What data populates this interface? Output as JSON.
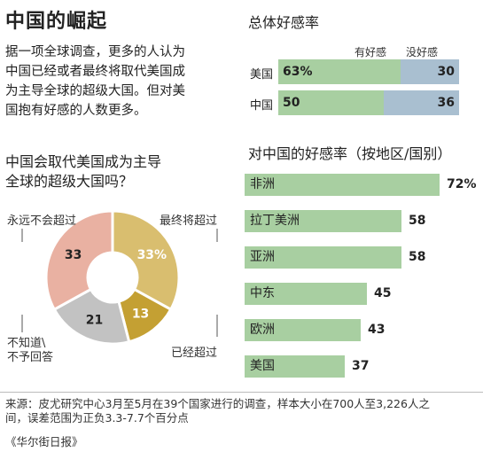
{
  "title": "中国的崛起",
  "intro_lines": [
    "据一项全球调查，更多的人认为",
    "中国已经或者最终将取代美国成",
    "为主导全球的超级大国。但对美",
    "国抱有好感的人数更多。"
  ],
  "question_lines": [
    "中国会取代美国成为主导",
    "全球的超级大国吗？"
  ],
  "overall": {
    "title": "总体好感率",
    "fav_label": "有好感",
    "unfav_label": "没好感"
  },
  "region": {
    "title": "对中国的好感率（按地区/国别）"
  },
  "donut_labels": {
    "never": "永远不会超过",
    "eventually": "最终将超过",
    "already": "已经超过",
    "dont_know_lines": [
      "不知道\\",
      "不予回答"
    ]
  },
  "source_lines": [
    "来源：皮尤研究中心3月至5月在39个国家进行的调查，样本大小在700人至3,226人之",
    "间，误差范围为正负3.3-7.7个百分点"
  ],
  "publisher": "《华尔街日报》",
  "colors": {
    "favorable": "#a8cfa1",
    "unfavorable": "#a9bfd0",
    "eventually": "#d9be6f",
    "already": "#c4a033",
    "dont_know": "#c2c2c2",
    "never": "#e9b1a2"
  },
  "chart_data": [
    {
      "type": "bar",
      "title": "总体好感率",
      "categories": [
        "美国",
        "中国"
      ],
      "series": [
        {
          "name": "有好感",
          "values": [
            63,
            50
          ],
          "labels": [
            "63%",
            "50"
          ]
        },
        {
          "name": "没好感",
          "values": [
            30,
            36
          ],
          "labels": [
            "30",
            "36"
          ]
        }
      ],
      "stacked": true,
      "orientation": "horizontal"
    },
    {
      "type": "pie",
      "title": "中国会取代美国成为主导全球的超级大国吗？",
      "donut": true,
      "slices": [
        {
          "label": "最终将超过",
          "value": 33,
          "display": "33%"
        },
        {
          "label": "已经超过",
          "value": 13,
          "display": "13"
        },
        {
          "label": "不知道\\不予回答",
          "value": 21,
          "display": "21"
        },
        {
          "label": "永远不会超过",
          "value": 33,
          "display": "33"
        }
      ]
    },
    {
      "type": "bar",
      "title": "对中国的好感率（按地区/国别）",
      "orientation": "horizontal",
      "categories": [
        "非洲",
        "拉丁美洲",
        "亚洲",
        "中东",
        "欧洲",
        "美国"
      ],
      "values": [
        72,
        58,
        58,
        45,
        43,
        37
      ],
      "labels": [
        "72%",
        "58",
        "58",
        "45",
        "43",
        "37"
      ]
    }
  ]
}
